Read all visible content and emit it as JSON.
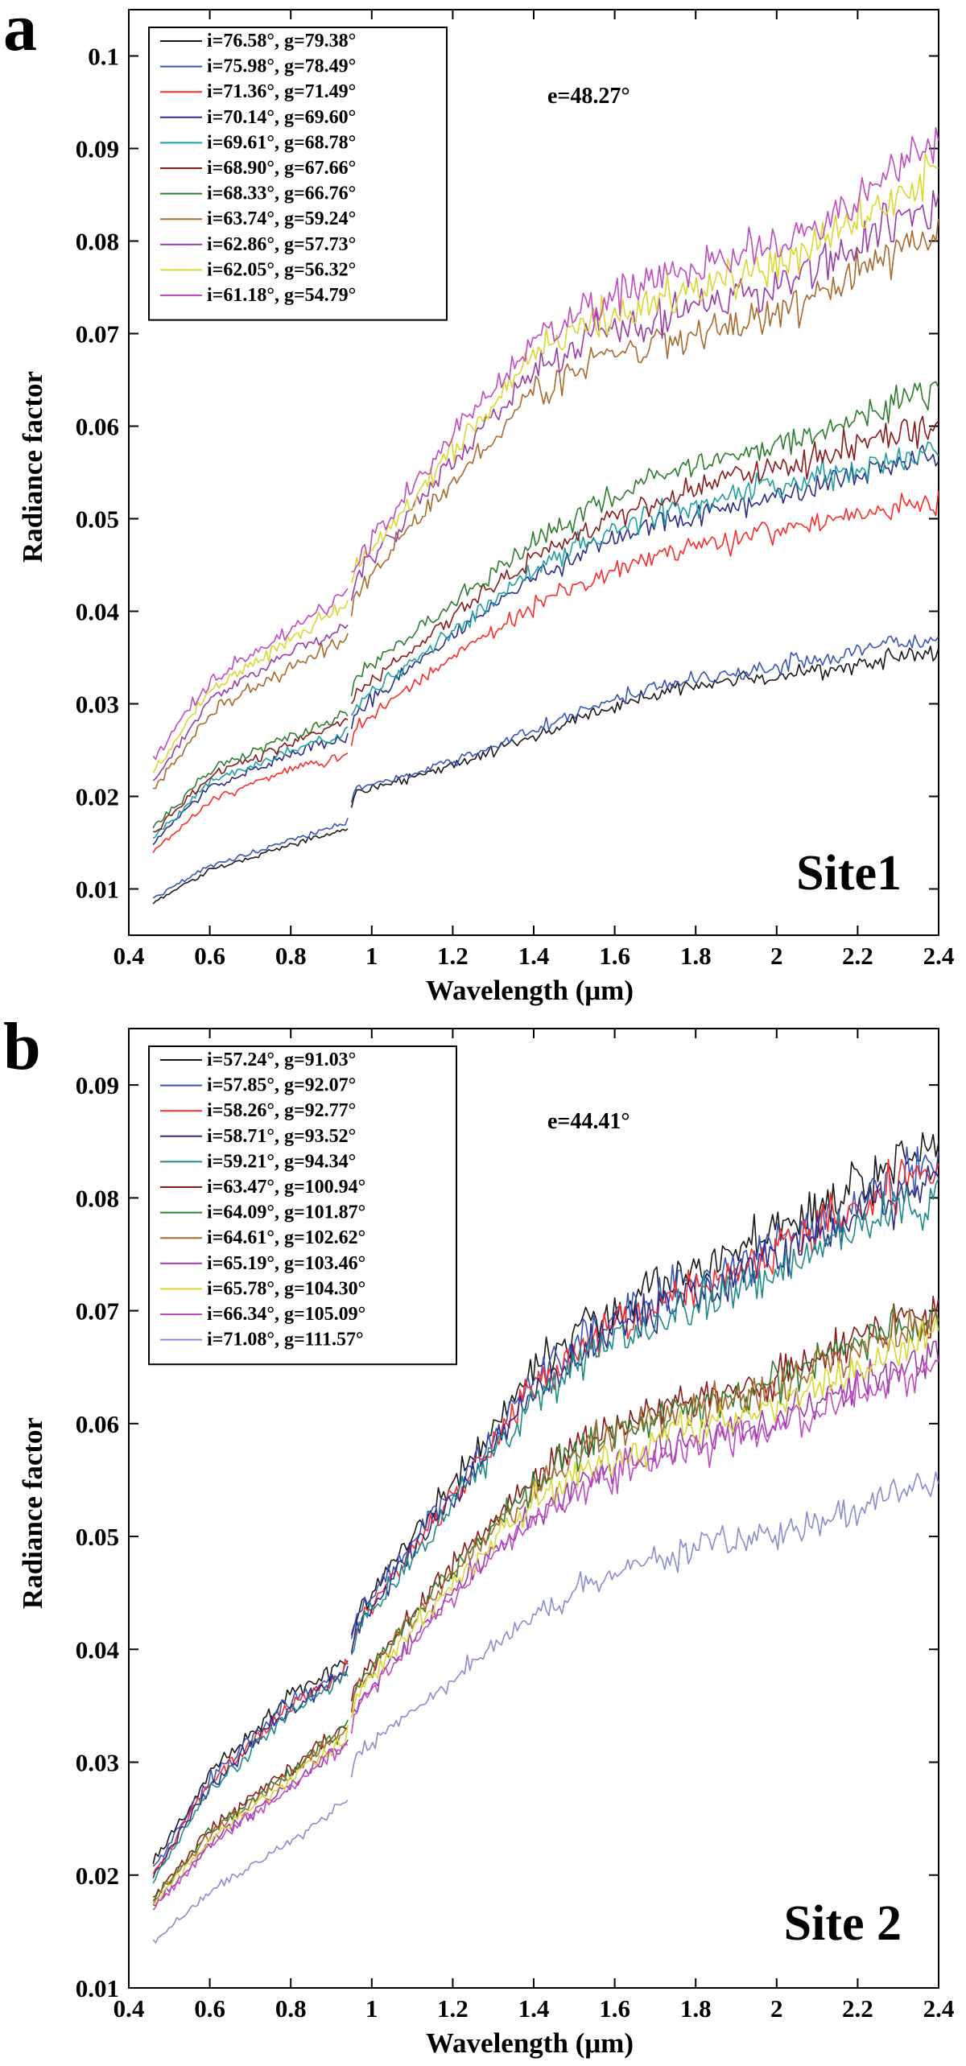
{
  "panels": [
    {
      "letter": "a",
      "site_label": "Site1",
      "emission_label": "e=48.27°",
      "chart_data": {
        "type": "line",
        "title": "",
        "xlabel": "Wavelength (μm)",
        "ylabel": "Radiance factor",
        "xlim": [
          0.4,
          2.4
        ],
        "ylim": [
          0.005,
          0.105
        ],
        "xticks": [
          0.4,
          0.6,
          0.8,
          1,
          1.2,
          1.4,
          1.6,
          1.8,
          2,
          2.2,
          2.4
        ],
        "xtick_labels": [
          "0.4",
          "0.6",
          "0.8",
          "1",
          "1.2",
          "1.4",
          "1.6",
          "1.8",
          "2",
          "2.2",
          "2.4"
        ],
        "yticks": [
          0.01,
          0.02,
          0.03,
          0.04,
          0.05,
          0.06,
          0.07,
          0.08,
          0.09,
          0.1
        ],
        "ytick_labels": [
          "0.01",
          "0.02",
          "0.03",
          "0.04",
          "0.05",
          "0.06",
          "0.07",
          "0.08",
          "0.09",
          "0.1"
        ],
        "legend_position": "top-left",
        "annotations": [
          "e=48.27°",
          "Site1"
        ],
        "series": [
          {
            "name": "i=76.58°, g=79.38°",
            "color": "#1a1a1a",
            "anchors": [
              0.0085,
              0.012,
              0.0148,
              0.0165,
              0.0205,
              0.022,
              0.024,
              0.0265,
              0.029,
              0.031,
              0.0323,
              0.033,
              0.0335,
              0.0342,
              0.0352,
              0.0355
            ]
          },
          {
            "name": "i=75.98°, g=78.49°",
            "color": "#3a55b8",
            "anchors": [
              0.009,
              0.0125,
              0.0153,
              0.0172,
              0.0208,
              0.0225,
              0.0245,
              0.0272,
              0.0298,
              0.0318,
              0.033,
              0.034,
              0.0348,
              0.0357,
              0.0368,
              0.037
            ]
          },
          {
            "name": "i=71.36°, g=71.49°",
            "color": "#ff2a2a",
            "anchors": [
              0.014,
              0.0195,
              0.023,
              0.0245,
              0.0275,
              0.032,
              0.0365,
              0.0405,
              0.044,
              0.046,
              0.0475,
              0.0485,
              0.0495,
              0.0505,
              0.0515,
              0.0515
            ]
          },
          {
            "name": "i=70.14°, g=69.60°",
            "color": "#2c2c8a",
            "anchors": [
              0.015,
              0.021,
              0.0245,
              0.0265,
              0.029,
              0.034,
              0.039,
              0.044,
              0.047,
              0.0495,
              0.051,
              0.0525,
              0.0535,
              0.0545,
              0.056,
              0.0565
            ]
          },
          {
            "name": "i=69.61°, g=68.78°",
            "color": "#1fa0a0",
            "anchors": [
              0.0155,
              0.0215,
              0.025,
              0.027,
              0.03,
              0.0345,
              0.0395,
              0.0445,
              0.048,
              0.0505,
              0.052,
              0.0535,
              0.0545,
              0.0555,
              0.057,
              0.0575
            ]
          },
          {
            "name": "i=68.90°, g=67.66°",
            "color": "#8a1a1a",
            "anchors": [
              0.016,
              0.0222,
              0.0258,
              0.0282,
              0.031,
              0.036,
              0.041,
              0.046,
              0.0495,
              0.052,
              0.054,
              0.0555,
              0.0565,
              0.058,
              0.0595,
              0.06
            ]
          },
          {
            "name": "i=68.33°, g=66.76°",
            "color": "#2e7d2e",
            "anchors": [
              0.0165,
              0.0228,
              0.0265,
              0.029,
              0.033,
              0.0375,
              0.0425,
              0.0475,
              0.0515,
              0.0545,
              0.0565,
              0.058,
              0.0595,
              0.061,
              0.063,
              0.064
            ]
          },
          {
            "name": "i=63.74°, g=59.24°",
            "color": "#a86a2e",
            "anchors": [
              0.0205,
              0.029,
              0.034,
              0.037,
              0.042,
              0.0495,
              0.0565,
              0.0635,
              0.0675,
              0.069,
              0.07,
              0.072,
              0.074,
              0.0765,
              0.079,
              0.0805
            ]
          },
          {
            "name": "i=62.86°, g=57.73°",
            "color": "#9a3aaa",
            "anchors": [
              0.0215,
              0.0305,
              0.0355,
              0.0385,
              0.0435,
              0.051,
              0.0585,
              0.066,
              0.07,
              0.0718,
              0.073,
              0.075,
              0.077,
              0.0795,
              0.0825,
              0.0835
            ]
          },
          {
            "name": "i=62.05°, g=56.32°",
            "color": "#d8d830",
            "anchors": [
              0.0225,
              0.0315,
              0.037,
              0.041,
              0.0445,
              0.052,
              0.06,
              0.0675,
              0.0715,
              0.0735,
              0.0755,
              0.0775,
              0.0795,
              0.082,
              0.085,
              0.087
            ]
          },
          {
            "name": "i=61.18°, g=54.79°",
            "color": "#c24ac2",
            "anchors": [
              0.024,
              0.0325,
              0.038,
              0.042,
              0.0455,
              0.0535,
              0.0615,
              0.069,
              0.0735,
              0.0755,
              0.0775,
              0.0795,
              0.0815,
              0.0845,
              0.088,
              0.0905
            ]
          }
        ],
        "anchor_x": [
          0.46,
          0.6,
          0.8,
          0.94,
          0.96,
          1.1,
          1.25,
          1.4,
          1.55,
          1.7,
          1.85,
          2.0,
          2.1,
          2.2,
          2.3,
          2.4
        ]
      }
    },
    {
      "letter": "b",
      "site_label": "Site 2",
      "emission_label": "e=44.41°",
      "chart_data": {
        "type": "line",
        "title": "",
        "xlabel": "Wavelength (μm)",
        "ylabel": "Radiance factor",
        "xlim": [
          0.4,
          2.4
        ],
        "ylim": [
          0.01,
          0.095
        ],
        "xticks": [
          0.4,
          0.6,
          0.8,
          1,
          1.2,
          1.4,
          1.6,
          1.8,
          2,
          2.2,
          2.4
        ],
        "xtick_labels": [
          "0.4",
          "0.6",
          "0.8",
          "1",
          "1.2",
          "1.4",
          "1.6",
          "1.8",
          "2",
          "2.2",
          "2.4"
        ],
        "yticks": [
          0.01,
          0.02,
          0.03,
          0.04,
          0.05,
          0.06,
          0.07,
          0.08,
          0.09
        ],
        "ytick_labels": [
          "0.01",
          "0.02",
          "0.03",
          "0.04",
          "0.05",
          "0.06",
          "0.07",
          "0.08",
          "0.09"
        ],
        "legend_position": "top-left",
        "annotations": [
          "e=44.41°",
          "Site 2"
        ],
        "series": [
          {
            "name": "i=57.24°, g=91.03°",
            "color": "#1a1a1a",
            "anchors": [
              0.021,
              0.029,
              0.036,
              0.039,
              0.043,
              0.05,
              0.057,
              0.065,
              0.0695,
              0.072,
              0.0745,
              0.077,
              0.079,
              0.081,
              0.0835,
              0.0855
            ]
          },
          {
            "name": "i=57.85°, g=92.07°",
            "color": "#3a55b8",
            "anchors": [
              0.0205,
              0.0285,
              0.0355,
              0.0385,
              0.0425,
              0.0495,
              0.0565,
              0.064,
              0.0685,
              0.071,
              0.0735,
              0.0755,
              0.0775,
              0.0795,
              0.0815,
              0.083
            ]
          },
          {
            "name": "i=58.26°, g=92.77°",
            "color": "#ff2a2a",
            "anchors": [
              0.02,
              0.0282,
              0.0352,
              0.0382,
              0.042,
              0.049,
              0.056,
              0.0632,
              0.068,
              0.0705,
              0.0728,
              0.075,
              0.077,
              0.079,
              0.081,
              0.0825
            ]
          },
          {
            "name": "i=58.71°, g=93.52°",
            "color": "#2c2c8a",
            "anchors": [
              0.0198,
              0.0278,
              0.0348,
              0.0378,
              0.0418,
              0.0486,
              0.0555,
              0.0628,
              0.0675,
              0.07,
              0.0722,
              0.0745,
              0.0765,
              0.0785,
              0.0805,
              0.0818
            ]
          },
          {
            "name": "i=59.21°, g=94.34°",
            "color": "#1f8a8a",
            "anchors": [
              0.0195,
              0.0275,
              0.0345,
              0.0375,
              0.0415,
              0.0482,
              0.055,
              0.062,
              0.0665,
              0.069,
              0.0712,
              0.0732,
              0.0752,
              0.0772,
              0.079,
              0.08
            ]
          },
          {
            "name": "i=63.47°, g=100.94°",
            "color": "#8a1a1a",
            "anchors": [
              0.018,
              0.024,
              0.0295,
              0.0335,
              0.037,
              0.043,
              0.0495,
              0.055,
              0.059,
              0.061,
              0.0625,
              0.064,
              0.066,
              0.0675,
              0.069,
              0.07
            ]
          },
          {
            "name": "i=64.09°, g=101.87°",
            "color": "#2e7d2e",
            "anchors": [
              0.0178,
              0.0238,
              0.0292,
              0.0332,
              0.0368,
              0.0428,
              0.0492,
              0.0546,
              0.0586,
              0.0606,
              0.062,
              0.0636,
              0.0655,
              0.067,
              0.0685,
              0.0695
            ]
          },
          {
            "name": "i=64.61°, g=102.62°",
            "color": "#a86a2e",
            "anchors": [
              0.0176,
              0.0236,
              0.029,
              0.033,
              0.0365,
              0.0425,
              0.0488,
              0.0542,
              0.0582,
              0.0602,
              0.0616,
              0.0632,
              0.065,
              0.0665,
              0.068,
              0.069
            ]
          },
          {
            "name": "i=65.19°, g=103.46°",
            "color": "#9a3aaa",
            "anchors": [
              0.017,
              0.0228,
              0.028,
              0.0318,
              0.035,
              0.041,
              0.047,
              0.052,
              0.0555,
              0.0575,
              0.059,
              0.0605,
              0.062,
              0.0635,
              0.0648,
              0.0658
            ]
          },
          {
            "name": "i=65.78°, g=104.30°",
            "color": "#d8d830",
            "anchors": [
              0.0172,
              0.0232,
              0.0285,
              0.0322,
              0.0358,
              0.0418,
              0.0478,
              0.053,
              0.0565,
              0.0585,
              0.06,
              0.0615,
              0.0632,
              0.0648,
              0.0662,
              0.0672
            ]
          },
          {
            "name": "i=66.34°, g=105.09°",
            "color": "#c24ac2",
            "anchors": [
              0.0168,
              0.0226,
              0.0278,
              0.0316,
              0.0348,
              0.0406,
              0.0465,
              0.0515,
              0.055,
              0.057,
              0.0585,
              0.0598,
              0.0612,
              0.0625,
              0.0638,
              0.0648
            ]
          },
          {
            "name": "i=71.08°, g=111.57°",
            "color": "#8c8ccf",
            "anchors": [
              0.014,
              0.0185,
              0.023,
              0.0265,
              0.0305,
              0.0345,
              0.039,
              0.043,
              0.046,
              0.048,
              0.0495,
              0.0505,
              0.0515,
              0.0525,
              0.054,
              0.0545
            ]
          }
        ],
        "anchor_x": [
          0.46,
          0.6,
          0.8,
          0.94,
          0.96,
          1.1,
          1.25,
          1.4,
          1.55,
          1.7,
          1.85,
          2.0,
          2.1,
          2.2,
          2.3,
          2.4
        ]
      }
    }
  ]
}
